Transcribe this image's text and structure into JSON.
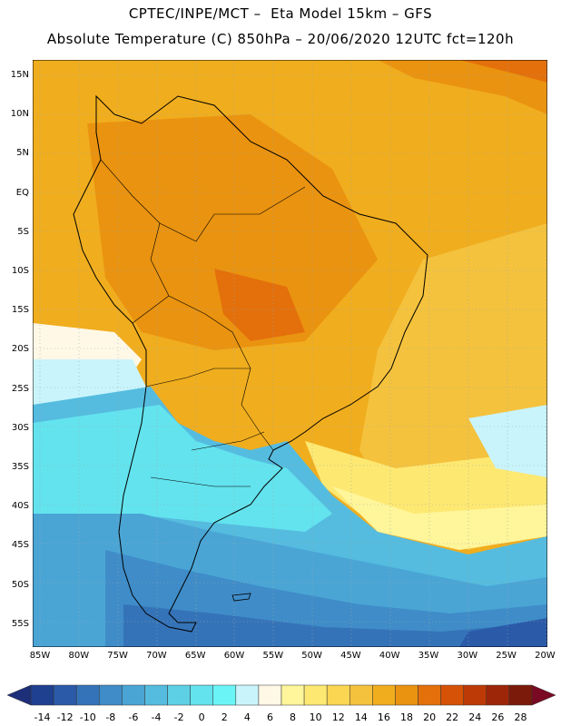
{
  "header": {
    "line1": "CPTEC/INPE/MCT –  Eta Model 15km – GFS",
    "line2": "Absolute Temperature (C) 850hPa – 20/06/2020 12UTC fct=120h"
  },
  "map": {
    "lat_labels": [
      "15N",
      "10N",
      "5N",
      "EQ",
      "5S",
      "10S",
      "15S",
      "20S",
      "25S",
      "30S",
      "35S",
      "40S",
      "45S",
      "50S",
      "55S"
    ],
    "lon_labels": [
      "85W",
      "80W",
      "75W",
      "70W",
      "65W",
      "60W",
      "55W",
      "50W",
      "45W",
      "40W",
      "35W",
      "30W",
      "25W",
      "20W"
    ]
  },
  "colorbar": {
    "labels": [
      "-14",
      "-12",
      "-10",
      "-8",
      "-6",
      "-4",
      "-2",
      "0",
      "2",
      "4",
      "6",
      "8",
      "10",
      "12",
      "14",
      "16",
      "18",
      "20",
      "22",
      "24",
      "26",
      "28"
    ],
    "colors": [
      "#1f3f8f",
      "#2a5aa8",
      "#3573b8",
      "#3f8cc8",
      "#4aa5d5",
      "#55bcdf",
      "#5ed0e6",
      "#63e3ee",
      "#6bf4f6",
      "#c9f4fb",
      "#fff8e6",
      "#fff59a",
      "#fde872",
      "#fbd653",
      "#f4c23d",
      "#f0ad1e",
      "#ea9310",
      "#e3700b",
      "#d55207",
      "#bd3a06",
      "#9d2608",
      "#7b1a0a"
    ],
    "under_color": "#1e2f7a",
    "over_color": "#7a0a24"
  }
}
